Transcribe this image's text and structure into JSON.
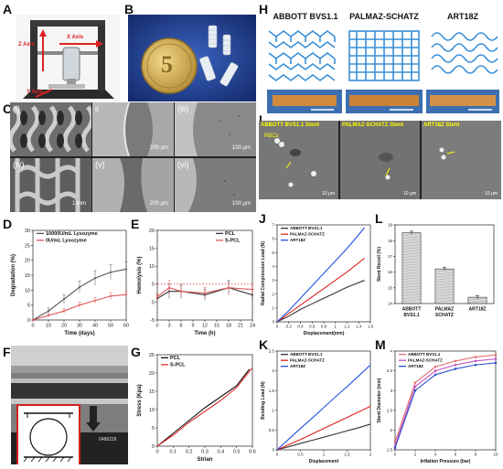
{
  "labels": {
    "A": "A",
    "B": "B",
    "C": "C",
    "D": "D",
    "E": "E",
    "F": "F",
    "G": "G",
    "H": "H",
    "I": "I",
    "J": "J",
    "K": "K",
    "L": "L",
    "M": "M"
  },
  "panel_a": {
    "z_axis": "Z Axis",
    "x_axis": "X Axis",
    "y_axis": "Y Axis"
  },
  "panel_b": {
    "coin_digit": "5"
  },
  "panel_c": {
    "subpanels": [
      "(i)",
      "ii",
      "(iii)",
      "(iv)",
      "(v)",
      "(vi)"
    ],
    "scales": [
      "",
      "200 μm",
      "100 μm",
      "1 mm",
      "200 μm",
      "100 μm"
    ]
  },
  "panel_f": {
    "sample_id": "0486228"
  },
  "panel_h": {
    "titles": [
      "ABBOTT BVS1.1",
      "PALMAZ-SCHATZ",
      "ART18Z"
    ]
  },
  "panel_i": {
    "titles": [
      "ABBOTT BVS1.1 Stent",
      "PALMAZ-SCHATZ Stent",
      "ART18Z Stent"
    ],
    "marker": "RBCs",
    "scale": "10 μm"
  },
  "chart_data": [
    {
      "id": "D",
      "type": "line",
      "xlabel": "Time (days)",
      "ylabel": "Degradation (%)",
      "xlim": [
        0,
        60
      ],
      "ylim": [
        0,
        30
      ],
      "xticks": [
        0,
        10,
        20,
        30,
        40,
        50,
        60
      ],
      "yticks": [
        0,
        5,
        10,
        15,
        20,
        25,
        30
      ],
      "series": [
        {
          "name": "10000U/mL Lysozyme",
          "color": "#555555",
          "x": [
            0,
            10,
            20,
            30,
            40,
            50,
            60
          ],
          "y": [
            0,
            3,
            7,
            11,
            14,
            16,
            17
          ],
          "err": [
            0,
            1,
            1.5,
            2,
            2.5,
            2.5,
            2.5
          ]
        },
        {
          "name": "0U/mL Lysozyme",
          "color": "#e05555",
          "x": [
            0,
            10,
            20,
            30,
            40,
            50,
            60
          ],
          "y": [
            0,
            1.5,
            3,
            5,
            6.5,
            8,
            8.5
          ],
          "err": [
            0,
            0.5,
            0.8,
            1,
            1,
            1.2,
            1.2
          ]
        }
      ],
      "legend": "upper-left"
    },
    {
      "id": "E",
      "type": "line",
      "xlabel": "Time (h)",
      "ylabel": "Hemolysis (%)",
      "xlim": [
        0,
        24
      ],
      "ylim": [
        -5,
        20
      ],
      "xticks": [
        0,
        3,
        6,
        9,
        12,
        15,
        18,
        21,
        24
      ],
      "yticks": [
        -5,
        0,
        5,
        10,
        15,
        20
      ],
      "threshold": 5,
      "series": [
        {
          "name": "PCL",
          "color": "#333333",
          "x": [
            0,
            3,
            6,
            12,
            18,
            24
          ],
          "y": [
            1,
            3,
            3,
            2,
            4,
            2
          ],
          "err": [
            1,
            2,
            2,
            1.5,
            2,
            1.5
          ]
        },
        {
          "name": "S-PCL",
          "color": "#e05555",
          "x": [
            0,
            3,
            6,
            12,
            18,
            24
          ],
          "y": [
            1.5,
            4,
            3,
            2.5,
            4,
            3.5
          ],
          "err": [
            1,
            2,
            1.5,
            1.5,
            1.5,
            1.5
          ]
        }
      ],
      "legend": "upper-right"
    },
    {
      "id": "G",
      "type": "line",
      "xlabel": "Strian",
      "ylabel": "Stress (Kpa)",
      "xlim": [
        0,
        0.6
      ],
      "ylim": [
        0,
        25
      ],
      "xticks": [
        0,
        0.1,
        0.2,
        0.3,
        0.4,
        0.5,
        0.6
      ],
      "yticks": [
        0,
        5,
        10,
        15,
        20,
        25
      ],
      "series": [
        {
          "name": "PCL",
          "color": "#111111",
          "x": [
            0,
            0.1,
            0.2,
            0.3,
            0.4,
            0.5,
            0.58
          ],
          "y": [
            0,
            3.5,
            7,
            10.5,
            13.5,
            16.5,
            21
          ]
        },
        {
          "name": "S-PCL",
          "color": "#e03030",
          "x": [
            0,
            0.1,
            0.2,
            0.3,
            0.4,
            0.5,
            0.6
          ],
          "y": [
            0,
            3,
            6.5,
            9.5,
            12.5,
            16,
            21.5
          ]
        }
      ],
      "legend": "upper-left"
    },
    {
      "id": "J",
      "type": "line",
      "xlabel": "Displacement(mm)",
      "ylabel": "Radial Compression Load (N)",
      "xlim": [
        0,
        1.6
      ],
      "ylim": [
        0,
        7
      ],
      "xticks": [
        0,
        0.2,
        0.4,
        0.6,
        0.8,
        1.0,
        1.2,
        1.4,
        1.6
      ],
      "yticks": [
        0,
        1,
        2,
        3,
        4,
        5,
        6,
        7
      ],
      "series": [
        {
          "name": "ABBOTT BVS1.1",
          "color": "#333333",
          "x": [
            0,
            0.2,
            0.4,
            0.6,
            0.8,
            1.0,
            1.2,
            1.5
          ],
          "y": [
            0,
            0.4,
            0.9,
            1.3,
            1.7,
            2.1,
            2.5,
            3.0
          ]
        },
        {
          "name": "PALMAZ-SCHATZ",
          "color": "#e02020",
          "x": [
            0,
            0.2,
            0.4,
            0.6,
            0.8,
            1.0,
            1.2,
            1.5
          ],
          "y": [
            0,
            0.6,
            1.2,
            1.8,
            2.4,
            3.0,
            3.6,
            4.6
          ]
        },
        {
          "name": "ART18Z",
          "color": "#2050e0",
          "x": [
            0,
            0.2,
            0.4,
            0.6,
            0.8,
            1.0,
            1.2,
            1.5
          ],
          "y": [
            0,
            0.8,
            1.7,
            2.6,
            3.5,
            4.4,
            5.3,
            6.8
          ]
        }
      ],
      "legend": "upper-left"
    },
    {
      "id": "K",
      "type": "line",
      "xlabel": "Displacement",
      "ylabel": "Bending Load (N)",
      "xlim": [
        0,
        2
      ],
      "ylim": [
        0,
        2.5
      ],
      "xticks": [
        0,
        0.5,
        1.0,
        1.5,
        2.0
      ],
      "yticks": [
        0,
        0.5,
        1.0,
        1.5,
        2.0,
        2.5
      ],
      "series": [
        {
          "name": "ABBOTT BVS1.1",
          "color": "#333333",
          "x": [
            0,
            0.25,
            0.5,
            0.75,
            1.0,
            1.25,
            1.5,
            1.75,
            2.0
          ],
          "y": [
            0,
            0.08,
            0.16,
            0.24,
            0.32,
            0.4,
            0.48,
            0.56,
            0.65
          ]
        },
        {
          "name": "PALMAZ-SCHATZ",
          "color": "#e02020",
          "x": [
            0,
            0.25,
            0.5,
            0.75,
            1.0,
            1.25,
            1.5,
            1.75,
            2.0
          ],
          "y": [
            0,
            0.13,
            0.26,
            0.4,
            0.54,
            0.68,
            0.82,
            0.96,
            1.1
          ]
        },
        {
          "name": "ART18Z",
          "color": "#2050e0",
          "x": [
            0,
            0.25,
            0.5,
            0.75,
            1.0,
            1.25,
            1.5,
            1.75,
            2.0
          ],
          "y": [
            0,
            0.27,
            0.54,
            0.8,
            1.07,
            1.34,
            1.6,
            1.87,
            2.15
          ]
        }
      ],
      "legend": "upper-left"
    },
    {
      "id": "L",
      "type": "bar",
      "categories": [
        "ABBOTT BVS1.1",
        "PALMAZ SCHATZ",
        "ART18Z"
      ],
      "values": [
        18.5,
        16.2,
        14.4
      ],
      "err": [
        0.1,
        0.1,
        0.1
      ],
      "ylabel": "Stent Recoil (%)",
      "ylim": [
        14,
        19
      ],
      "yticks": [
        14,
        15,
        16,
        17,
        18,
        19
      ]
    },
    {
      "id": "M",
      "type": "line",
      "xlabel": "Inflation Pressure (bar)",
      "ylabel": "Stent Diameter (mm)",
      "xlim": [
        0,
        10
      ],
      "ylim": [
        1.5,
        4.0
      ],
      "xticks": [
        0,
        2,
        4,
        6,
        8,
        10
      ],
      "yticks": [
        1.5,
        2.0,
        2.5,
        3.0,
        3.5,
        4.0
      ],
      "series": [
        {
          "name": "ABBOTT BVS1.1",
          "color": "#e07070",
          "x": [
            0,
            2,
            4,
            6,
            8,
            10
          ],
          "y": [
            1.7,
            3.2,
            3.6,
            3.75,
            3.85,
            3.9
          ]
        },
        {
          "name": "PALMAZ-SCHATZ",
          "color": "#c050c0",
          "x": [
            0,
            2,
            4,
            6,
            8,
            10
          ],
          "y": [
            1.6,
            3.1,
            3.5,
            3.65,
            3.75,
            3.8
          ]
        },
        {
          "name": "ART18Z",
          "color": "#3050d0",
          "x": [
            0,
            2,
            4,
            6,
            8,
            10
          ],
          "y": [
            1.55,
            3.0,
            3.4,
            3.55,
            3.65,
            3.7
          ]
        }
      ],
      "legend": "upper-left"
    }
  ]
}
